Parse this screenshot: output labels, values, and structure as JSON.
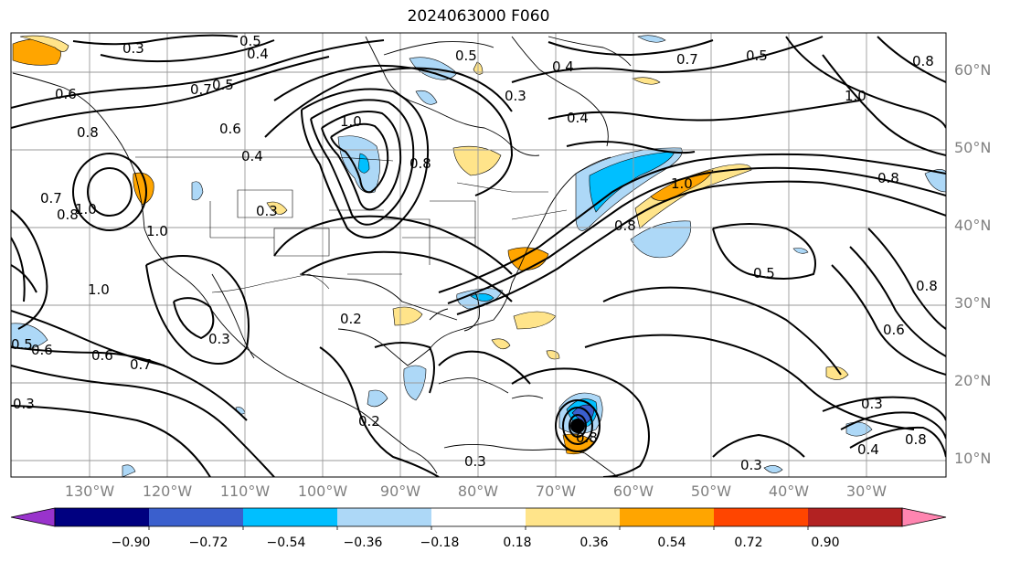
{
  "title": "2024063000 F060",
  "lat_labels": [
    "60°N",
    "50°N",
    "40°N",
    "30°N",
    "20°N",
    "10°N"
  ],
  "lon_labels": [
    "130°W",
    "120°W",
    "110°W",
    "100°W",
    "90°W",
    "80°W",
    "70°W",
    "60°W",
    "50°W",
    "40°W",
    "30°W"
  ],
  "colorbar": {
    "ticks": [
      "−0.90",
      "−0.72",
      "−0.54",
      "−0.36",
      "−0.18",
      "0.18",
      "0.36",
      "0.54",
      "0.72",
      "0.90"
    ],
    "colors": [
      "#9933cc",
      "#000080",
      "#3a5fcd",
      "#00bfff",
      "#add8f7",
      "#ffffff",
      "#ffe48a",
      "#ffa500",
      "#ff4500",
      "#b22222",
      "#ff85b0"
    ]
  },
  "contour_labels": [
    "0.3",
    "0.5",
    "0.4",
    "0.6",
    "0.5",
    "0.7",
    "0.5",
    "0.8",
    "0.7",
    "0.5",
    "0.8",
    "0.6",
    "1.0",
    "0.4",
    "0.3",
    "1.0",
    "0.4",
    "0.4",
    "0.8",
    "0.5",
    "1.0",
    "0.7",
    "0.8",
    "1.0",
    "1.0",
    "0.6",
    "0.7",
    "0.3",
    "0.6",
    "0.3",
    "0.2",
    "0.3",
    "0.2",
    "0.8",
    "0.8",
    "0.5",
    "1.0",
    "0.8",
    "0.6",
    "0.3",
    "0.3",
    "0.4",
    "0.8",
    "0.3",
    "0.8"
  ]
}
